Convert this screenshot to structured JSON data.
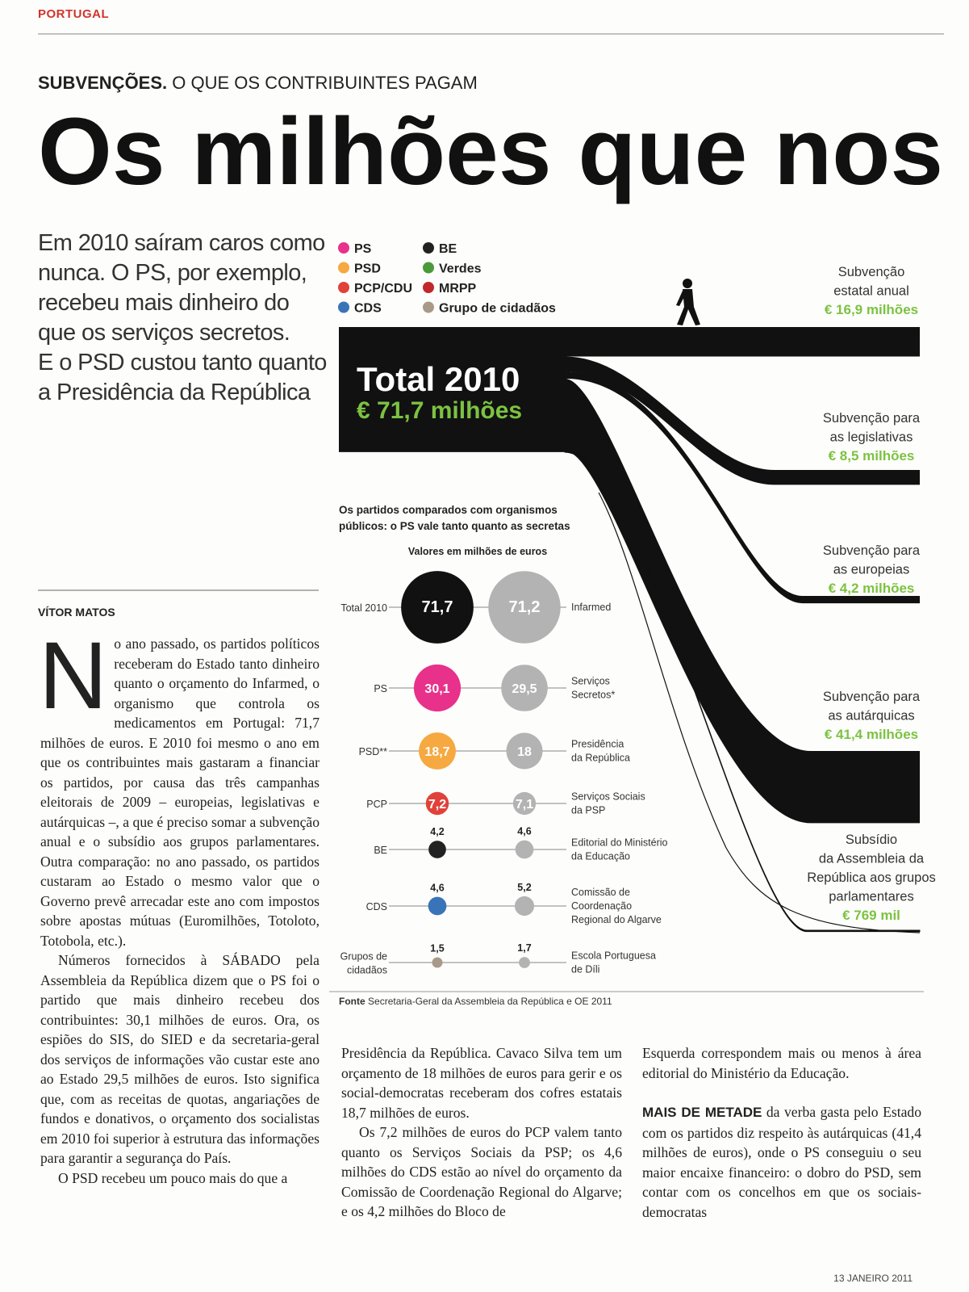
{
  "header": {
    "section": "PORTUGAL",
    "kicker": "SUBVENÇÕES.",
    "kicker_rest": "O QUE OS CONTRIBUINTES PAGAM",
    "title": "Os milhões que nos",
    "standfirst": [
      "Em 2010 saíram caros como",
      "nunca. O PS, por exemplo,",
      "recebeu mais dinheiro do",
      "que os serviços secretos.",
      "E o PSD custou tanto quanto",
      "a Presidência da República"
    ]
  },
  "legend": [
    {
      "name": "PS",
      "color": "#e8318a"
    },
    {
      "name": "PSD",
      "color": "#f5a940"
    },
    {
      "name": "PCP/CDU",
      "color": "#e0423a"
    },
    {
      "name": "CDS",
      "color": "#3a74b8"
    },
    {
      "name": "BE",
      "color": "#222222"
    },
    {
      "name": "Verdes",
      "color": "#4a9a3a"
    },
    {
      "name": "MRPP",
      "color": "#c0282e"
    },
    {
      "name": "Grupo de cidadãos",
      "color": "#a89a88"
    }
  ],
  "flow": {
    "total_label": "Total 2010",
    "total": {
      "value": 71.7,
      "label": "€ 71,7 milhões"
    },
    "branches": [
      {
        "label": [
          "Subvenção",
          "estatal anual"
        ],
        "value": 16.9,
        "value_label": "€ 16,9 milhões"
      },
      {
        "label": [
          "Subvenção para",
          "as legislativas"
        ],
        "value": 8.5,
        "value_label": "€ 8,5 milhões"
      },
      {
        "label": [
          "Subvenção para",
          "as europeias"
        ],
        "value": 4.2,
        "value_label": "€ 4,2 milhões"
      },
      {
        "label": [
          "Subvenção para",
          "as autárquicas"
        ],
        "value": 41.4,
        "value_label": "€ 41,4 milhões"
      },
      {
        "label": [
          "Subsídio",
          "da Assembleia da",
          "República aos grupos",
          "parlamentares"
        ],
        "value": 0.769,
        "value_label": "€ 769 mil"
      }
    ]
  },
  "comparison": {
    "title": [
      "Os partidos comparados com organismos",
      "públicos: o PS vale tanto quanto as secretas"
    ],
    "subtitle": "Valores em milhões de euros",
    "rows": [
      {
        "party": [
          "Total 2010"
        ],
        "party_color": "#111111",
        "party_value": {
          "value": 71.7,
          "label": "71,7"
        },
        "org": [
          "Infarmed"
        ],
        "org_value": {
          "value": 71.2,
          "label": "71,2"
        }
      },
      {
        "party": [
          "PS"
        ],
        "party_color": "#e8318a",
        "party_value": {
          "value": 30.1,
          "label": "30,1"
        },
        "org": [
          "Serviços",
          "Secretos*"
        ],
        "org_value": {
          "value": 29.5,
          "label": "29,5"
        }
      },
      {
        "party": [
          "PSD**"
        ],
        "party_color": "#f5a940",
        "party_value": {
          "value": 18.7,
          "label": "18,7"
        },
        "org": [
          "Presidência",
          "da República"
        ],
        "org_value": 18
      },
      {
        "party": [
          "PCP"
        ],
        "party_color": "#e0423a",
        "party_value": {
          "value": 7.2,
          "label": "7,2"
        },
        "org": [
          "Serviços Sociais",
          "da PSP"
        ],
        "org_value": {
          "value": 7.1,
          "label": "7,1"
        }
      },
      {
        "party": [
          "BE"
        ],
        "party_color": "#222222",
        "party_value": {
          "value": 4.2,
          "label": "4,2"
        },
        "org": [
          "Editorial do Ministério",
          "da Educação"
        ],
        "org_value": {
          "value": 4.6,
          "label": "4,6"
        }
      },
      {
        "party": [
          "CDS"
        ],
        "party_color": "#3a74b8",
        "party_value": {
          "value": 4.6,
          "label": "4,6"
        },
        "org": [
          "Comissão de",
          "Coordenação",
          "Regional do Algarve"
        ],
        "org_value": {
          "value": 5.2,
          "label": "5,2"
        }
      },
      {
        "party": [
          "Grupos de",
          "cidadãos"
        ],
        "party_color": "#a89a88",
        "party_value": {
          "value": 1.5,
          "label": "1,5"
        },
        "org": [
          "Escola Portuguesa",
          "de Díli"
        ],
        "org_value": {
          "value": 1.7,
          "label": "1,7"
        }
      }
    ],
    "org_color": "#b3b3b3",
    "source_lead": "Fonte",
    "source": "Secretaria-Geral da Assembleia da República e OE 2011"
  },
  "article": {
    "byline": "VÍTOR MATOS",
    "col1": {
      "dropcap": "N",
      "p1": "o ano passado, os partidos políticos receberam do Estado tanto dinheiro quanto o orçamento do Infarmed, o organismo que controla os medicamentos em Portugal: 71,7 milhões de euros. E 2010 foi mesmo o ano em que os contribuintes mais gastaram a financiar os partidos, por causa das três campanhas eleitorais de 2009 – europeias, legislativas e autárquicas –, a que é preciso somar a subvenção anual e o subsídio aos grupos parlamentares. Outra comparação: no ano passado, os partidos custaram ao Estado o mesmo valor que o Governo prevê arrecadar este ano com impostos sobre apostas mútuas (Euromilhões, Totoloto, Totobola, etc.).",
      "p2": "Números fornecidos à SÁBADO pela Assembleia da República dizem que o PS foi o partido que mais dinheiro recebeu dos contribuintes: 30,1 milhões de euros. Ora, os espiões do SIS, do SIED e da secretaria-geral dos serviços de informações vão custar este ano ao Estado 29,5 milhões de euros. Isto significa que, com as receitas de quotas, angariações de fundos e donativos, o orçamento dos socialistas em 2010 foi superior à estrutura das informações para garantir a segurança do País.",
      "p3": "O PSD recebeu um pouco mais do que a"
    },
    "col2": {
      "p1": "Presidência da República. Cavaco Silva tem um orçamento de 18 milhões de euros para gerir e os social-democratas receberam dos cofres estatais 18,7 milhões de euros.",
      "p2": "Os 7,2 milhões de euros do PCP valem tanto quanto os Serviços Sociais da PSP; os 4,6 milhões do CDS estão ao nível do orçamento da Comissão de Coordenação Regional do Algarve; e os 4,2 milhões do Bloco de"
    },
    "col3": {
      "p1": "Esquerda correspondem mais ou menos à área editorial do Ministério da Educação.",
      "p2_lead": "MAIS DE METADE",
      "p2": "da verba gasta pelo Estado com os partidos diz respeito às autárquicas (41,4 milhões de euros), onde o PS conseguiu o seu maior encaixe financeiro: o dobro do PSD, sem contar com os concelhos em que os sociais-democratas"
    }
  },
  "footer": {
    "date": "13 JANEIRO 2011"
  }
}
